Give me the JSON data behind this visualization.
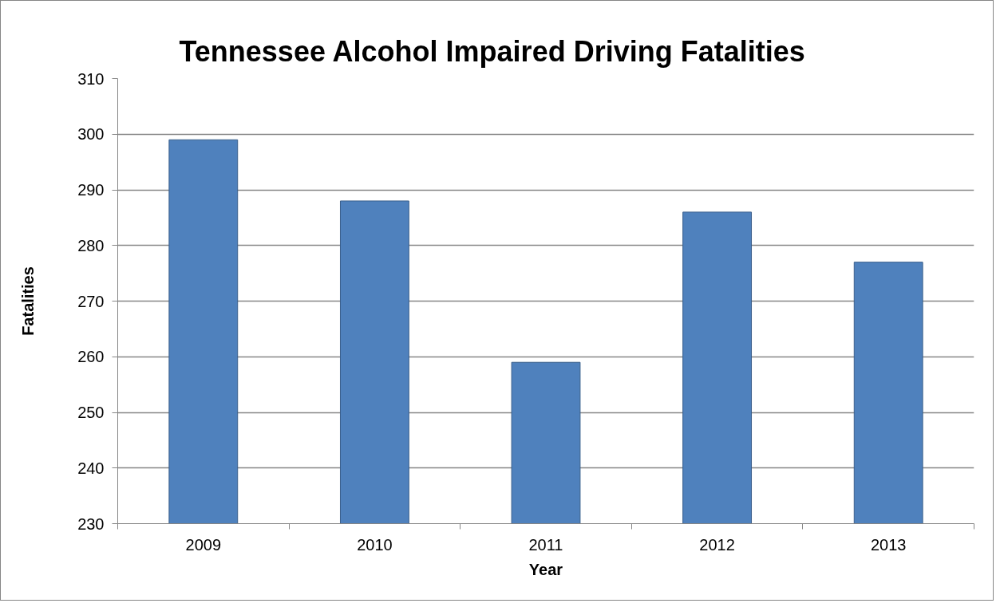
{
  "chart_data": {
    "type": "bar",
    "title": "Tennessee Alcohol Impaired Driving Fatalities",
    "xlabel": "Year",
    "ylabel": "Fatalities",
    "categories": [
      "2009",
      "2010",
      "2011",
      "2012",
      "2013"
    ],
    "values": [
      299,
      288,
      259,
      286,
      277
    ],
    "color": "#4f81bd",
    "ylim": [
      230,
      310
    ],
    "yticks": [
      230,
      240,
      250,
      260,
      270,
      280,
      290,
      300,
      310
    ],
    "grid": "y"
  }
}
